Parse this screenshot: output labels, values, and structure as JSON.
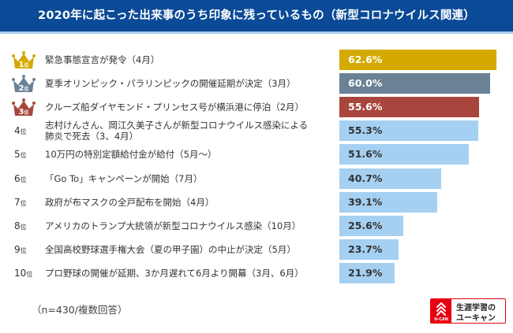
{
  "header": {
    "title": "2020年に起こった出来事のうち印象に残っているもの（新型コロナウイルス関連）"
  },
  "footnote": "（n=430/複数回答）",
  "logo": {
    "line1": "生涯学習の",
    "line2": "ユーキャン",
    "mark_text": "U-CAN",
    "icon": "ucan-logo-icon",
    "color": "#e60012"
  },
  "rank_suffix": "位",
  "colors": {
    "gold": "#d4aa00",
    "silver": "#6a8196",
    "bronze": "#a8463d",
    "default_bar": "#a6d0f2",
    "default_bar_text": "#333333",
    "top_bar_text": "#ffffff"
  },
  "chart_data": {
    "type": "bar",
    "orientation": "horizontal",
    "title": "2020年に起こった出来事のうち印象に残っているもの（新型コロナウイルス関連）",
    "xlabel": "",
    "ylabel": "",
    "unit": "%",
    "xlim": [
      0,
      62.6
    ],
    "note": "（n=430/複数回答）",
    "ranks": [
      "1",
      "2",
      "3",
      "4",
      "5",
      "6",
      "7",
      "8",
      "9",
      "10"
    ],
    "categories": [
      [
        "緊急事態宣言が発令（4月）"
      ],
      [
        "夏季オリンピック・パラリンピックの開催延期が決定（3月）"
      ],
      [
        "クルーズ船ダイヤモンド・プリンセス号が横浜港に停泊（2月）"
      ],
      [
        "志村けんさん、岡江久美子さんが新型コロナウイルス感染による",
        "肺炎で死去（3、4月）"
      ],
      [
        "10万円の特別定額給付金が給付（5月～）"
      ],
      [
        "「Go To」キャンペーンが開始（7月）"
      ],
      [
        "政府が布マスクの全戸配布を開始（4月）"
      ],
      [
        "アメリカのトランプ大統領が新型コロナウイルス感染（10月）"
      ],
      [
        "全国高校野球選手権大会（夏の甲子園）の中止が決定（5月）"
      ],
      [
        "プロ野球の開催が延期、3か月遅れて6月より開幕（3月、6月）"
      ]
    ],
    "values": [
      62.6,
      60.0,
      55.6,
      55.3,
      51.6,
      40.7,
      39.1,
      25.6,
      23.7,
      21.9
    ],
    "value_labels": [
      "62.6%",
      "60.0%",
      "55.6%",
      "55.3%",
      "51.6%",
      "40.7%",
      "39.1%",
      "25.6%",
      "23.7%",
      "21.9%"
    ],
    "bar_colors": [
      "#d4aa00",
      "#6a8196",
      "#a8463d",
      "#a6d0f2",
      "#a6d0f2",
      "#a6d0f2",
      "#a6d0f2",
      "#a6d0f2",
      "#a6d0f2",
      "#a6d0f2"
    ],
    "crown_ranks": [
      1,
      2,
      3
    ],
    "grid": false,
    "legend": "none"
  }
}
